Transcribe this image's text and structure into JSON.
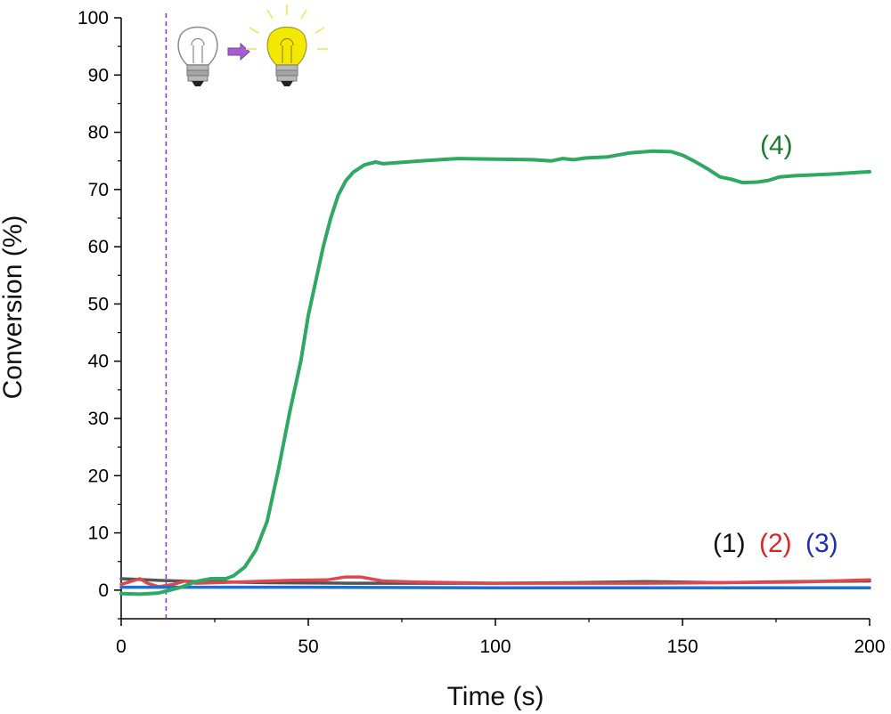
{
  "chart_data": {
    "type": "line",
    "title": "",
    "xlabel": "Time (s)",
    "ylabel": "Conversion (%)",
    "xlim": [
      0,
      200
    ],
    "ylim": [
      -5,
      100
    ],
    "x_ticks": [
      "0",
      "50",
      "100",
      "150",
      "200"
    ],
    "y_ticks": [
      "0",
      "10",
      "20",
      "30",
      "40",
      "50",
      "60",
      "70",
      "80",
      "90",
      "100"
    ],
    "light_on_time": 12,
    "grid": false,
    "series": [
      {
        "name": "(1)",
        "color": "#555555",
        "label_color": "#111111",
        "points": [
          [
            0,
            2
          ],
          [
            10,
            1.7
          ],
          [
            20,
            1.5
          ],
          [
            40,
            1.3
          ],
          [
            60,
            1.2
          ],
          [
            80,
            1.2
          ],
          [
            100,
            1.2
          ],
          [
            120,
            1.3
          ],
          [
            140,
            1.5
          ],
          [
            160,
            1.3
          ],
          [
            180,
            1.5
          ],
          [
            200,
            1.6
          ]
        ]
      },
      {
        "name": "(2)",
        "color": "#e0474c",
        "label_color": "#d62728",
        "points": [
          [
            0,
            1
          ],
          [
            3,
            1.6
          ],
          [
            5,
            2
          ],
          [
            7,
            1.2
          ],
          [
            10,
            0.6
          ],
          [
            14,
            1
          ],
          [
            17,
            1.6
          ],
          [
            20,
            1.2
          ],
          [
            30,
            1.4
          ],
          [
            45,
            1.7
          ],
          [
            55,
            1.8
          ],
          [
            60,
            2.3
          ],
          [
            64,
            2.3
          ],
          [
            70,
            1.6
          ],
          [
            80,
            1.4
          ],
          [
            100,
            1.2
          ],
          [
            120,
            1.2
          ],
          [
            140,
            1.2
          ],
          [
            160,
            1.3
          ],
          [
            180,
            1.4
          ],
          [
            200,
            1.8
          ]
        ]
      },
      {
        "name": "(3)",
        "color": "#1f6fd0",
        "label_color": "#1f2fb5",
        "points": [
          [
            0,
            0.5
          ],
          [
            50,
            0.5
          ],
          [
            100,
            0.4
          ],
          [
            150,
            0.4
          ],
          [
            200,
            0.4
          ]
        ]
      },
      {
        "name": "(4)",
        "color": "#2ea862",
        "label_color": "#1b7a2c",
        "points": [
          [
            0,
            -0.6
          ],
          [
            5,
            -0.7
          ],
          [
            10,
            -0.5
          ],
          [
            13,
            0
          ],
          [
            16,
            0.5
          ],
          [
            20,
            1.5
          ],
          [
            24,
            2
          ],
          [
            28,
            2
          ],
          [
            30,
            2.5
          ],
          [
            33,
            4
          ],
          [
            36,
            7
          ],
          [
            39,
            12
          ],
          [
            42,
            21
          ],
          [
            45,
            31
          ],
          [
            48,
            40
          ],
          [
            50,
            48
          ],
          [
            52,
            54
          ],
          [
            54,
            60
          ],
          [
            56,
            65
          ],
          [
            58,
            69
          ],
          [
            60,
            71.5
          ],
          [
            62,
            73
          ],
          [
            65,
            74.3
          ],
          [
            68,
            74.8
          ],
          [
            70,
            74.5
          ],
          [
            80,
            75
          ],
          [
            90,
            75.4
          ],
          [
            100,
            75.3
          ],
          [
            110,
            75.2
          ],
          [
            115,
            75
          ],
          [
            118,
            75.4
          ],
          [
            121,
            75.2
          ],
          [
            124,
            75.5
          ],
          [
            130,
            75.7
          ],
          [
            136,
            76.4
          ],
          [
            142,
            76.7
          ],
          [
            147,
            76.6
          ],
          [
            150,
            76
          ],
          [
            153,
            75
          ],
          [
            157,
            73.5
          ],
          [
            160,
            72.2
          ],
          [
            163,
            71.8
          ],
          [
            166,
            71.2
          ],
          [
            170,
            71.3
          ],
          [
            173,
            71.6
          ],
          [
            176,
            72.2
          ],
          [
            180,
            72.4
          ],
          [
            190,
            72.7
          ],
          [
            200,
            73.1
          ]
        ]
      }
    ],
    "annotations": {
      "label_4": "(4)",
      "label_1": "(1)",
      "label_2": "(2)",
      "label_3": "(3)"
    }
  },
  "colors": {
    "dashed_line": "#8a2be2",
    "bulb_on": "#f5e800",
    "bulb_rays": "#f2ea7a",
    "arrow": "#a35fd0",
    "axis": "#000000"
  },
  "icons": {
    "bulb_off": "lightbulb-off-icon",
    "arrow": "arrow-right-icon",
    "bulb_on": "lightbulb-on-icon"
  }
}
